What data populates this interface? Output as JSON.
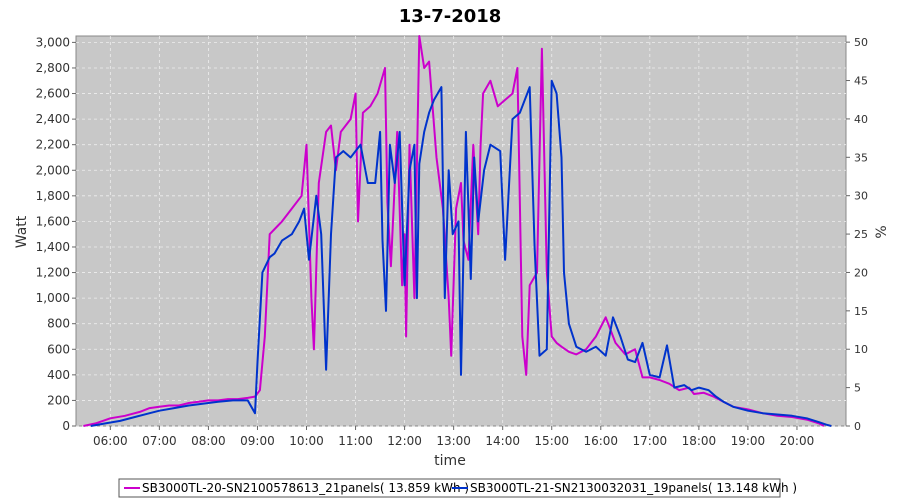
{
  "chart_data": {
    "type": "line",
    "title": "13-7-2018",
    "xlabel": "time",
    "ylabel": "Watt",
    "y2label": "%",
    "xlim": [
      5.3,
      21.0
    ],
    "ylim": [
      0,
      3050
    ],
    "y2lim": [
      0,
      50.8
    ],
    "x_ticks": [
      6,
      7,
      8,
      9,
      10,
      11,
      12,
      13,
      14,
      15,
      16,
      17,
      18,
      19,
      20
    ],
    "x_tick_labels": [
      "06:00",
      "07:00",
      "08:00",
      "09:00",
      "10:00",
      "11:00",
      "12:00",
      "13:00",
      "14:00",
      "15:00",
      "16:00",
      "17:00",
      "18:00",
      "19:00",
      "20:00"
    ],
    "y_ticks": [
      0,
      200,
      400,
      600,
      800,
      1000,
      1200,
      1400,
      1600,
      1800,
      2000,
      2200,
      2400,
      2600,
      2800,
      3000
    ],
    "y_tick_labels": [
      "0",
      "200",
      "400",
      "600",
      "800",
      "1,000",
      "1,200",
      "1,400",
      "1,600",
      "1,800",
      "2,000",
      "2,200",
      "2,400",
      "2,600",
      "2,800",
      "3,000"
    ],
    "y2_ticks": [
      0,
      5,
      10,
      15,
      20,
      25,
      30,
      35,
      40,
      45,
      50
    ],
    "y2_tick_labels": [
      "0",
      "5",
      "10",
      "15",
      "20",
      "25",
      "30",
      "35",
      "40",
      "45",
      "50"
    ],
    "grid": true,
    "legend_position": "bottom",
    "colors": {
      "plot_bg": "#c8c8c8",
      "grid": "#eeeeee",
      "s1": "#cc00cc",
      "s2": "#0033cc"
    },
    "series": [
      {
        "name": "SB3000TL-20-SN2100578613_21panels( 13.859 kWh )",
        "color": "#cc00cc",
        "points": [
          [
            5.45,
            0
          ],
          [
            5.7,
            20
          ],
          [
            6.0,
            60
          ],
          [
            6.3,
            80
          ],
          [
            6.6,
            110
          ],
          [
            6.8,
            140
          ],
          [
            7.0,
            150
          ],
          [
            7.2,
            160
          ],
          [
            7.4,
            160
          ],
          [
            7.6,
            180
          ],
          [
            7.8,
            190
          ],
          [
            8.0,
            200
          ],
          [
            8.2,
            200
          ],
          [
            8.4,
            210
          ],
          [
            8.6,
            210
          ],
          [
            8.8,
            220
          ],
          [
            8.95,
            230
          ],
          [
            9.05,
            280
          ],
          [
            9.15,
            700
          ],
          [
            9.25,
            1500
          ],
          [
            9.4,
            1560
          ],
          [
            9.5,
            1600
          ],
          [
            9.7,
            1700
          ],
          [
            9.9,
            1800
          ],
          [
            10.0,
            2200
          ],
          [
            10.1,
            1000
          ],
          [
            10.15,
            600
          ],
          [
            10.25,
            1900
          ],
          [
            10.4,
            2300
          ],
          [
            10.5,
            2350
          ],
          [
            10.6,
            2000
          ],
          [
            10.7,
            2300
          ],
          [
            10.8,
            2350
          ],
          [
            10.9,
            2400
          ],
          [
            11.0,
            2600
          ],
          [
            11.05,
            1600
          ],
          [
            11.15,
            2450
          ],
          [
            11.3,
            2500
          ],
          [
            11.45,
            2600
          ],
          [
            11.6,
            2800
          ],
          [
            11.65,
            1750
          ],
          [
            11.72,
            1250
          ],
          [
            11.85,
            2300
          ],
          [
            11.95,
            1100
          ],
          [
            12.0,
            1500
          ],
          [
            12.03,
            700
          ],
          [
            12.1,
            2200
          ],
          [
            12.2,
            1000
          ],
          [
            12.3,
            3050
          ],
          [
            12.4,
            2800
          ],
          [
            12.5,
            2850
          ],
          [
            12.65,
            2100
          ],
          [
            12.78,
            1700
          ],
          [
            12.9,
            1000
          ],
          [
            12.95,
            550
          ],
          [
            13.05,
            1700
          ],
          [
            13.15,
            1900
          ],
          [
            13.2,
            1450
          ],
          [
            13.3,
            1300
          ],
          [
            13.4,
            2200
          ],
          [
            13.5,
            1500
          ],
          [
            13.55,
            2200
          ],
          [
            13.6,
            2600
          ],
          [
            13.75,
            2700
          ],
          [
            13.9,
            2500
          ],
          [
            14.05,
            2550
          ],
          [
            14.2,
            2600
          ],
          [
            14.3,
            2800
          ],
          [
            14.4,
            700
          ],
          [
            14.48,
            400
          ],
          [
            14.55,
            1100
          ],
          [
            14.7,
            1200
          ],
          [
            14.8,
            2950
          ],
          [
            14.9,
            1200
          ],
          [
            15.0,
            700
          ],
          [
            15.1,
            650
          ],
          [
            15.2,
            620
          ],
          [
            15.35,
            580
          ],
          [
            15.5,
            560
          ],
          [
            15.7,
            600
          ],
          [
            15.9,
            700
          ],
          [
            16.1,
            850
          ],
          [
            16.3,
            650
          ],
          [
            16.5,
            560
          ],
          [
            16.7,
            600
          ],
          [
            16.85,
            380
          ],
          [
            17.0,
            380
          ],
          [
            17.2,
            360
          ],
          [
            17.4,
            330
          ],
          [
            17.6,
            280
          ],
          [
            17.8,
            300
          ],
          [
            17.9,
            250
          ],
          [
            18.1,
            260
          ],
          [
            18.3,
            230
          ],
          [
            18.5,
            190
          ],
          [
            18.7,
            150
          ],
          [
            19.0,
            130
          ],
          [
            19.3,
            100
          ],
          [
            19.6,
            80
          ],
          [
            19.9,
            70
          ],
          [
            20.2,
            50
          ],
          [
            20.45,
            20
          ],
          [
            20.55,
            0
          ]
        ]
      },
      {
        "name": "SB3000TL-21-SN2130032031_19panels( 13.148 kWh )",
        "color": "#0033cc",
        "points": [
          [
            5.6,
            0
          ],
          [
            5.9,
            20
          ],
          [
            6.2,
            40
          ],
          [
            6.5,
            70
          ],
          [
            6.8,
            100
          ],
          [
            7.0,
            120
          ],
          [
            7.3,
            140
          ],
          [
            7.6,
            160
          ],
          [
            7.9,
            175
          ],
          [
            8.2,
            190
          ],
          [
            8.5,
            200
          ],
          [
            8.8,
            200
          ],
          [
            8.95,
            100
          ],
          [
            9.0,
            500
          ],
          [
            9.1,
            1200
          ],
          [
            9.25,
            1320
          ],
          [
            9.35,
            1350
          ],
          [
            9.5,
            1450
          ],
          [
            9.7,
            1500
          ],
          [
            9.85,
            1600
          ],
          [
            9.95,
            1700
          ],
          [
            10.05,
            1300
          ],
          [
            10.2,
            1800
          ],
          [
            10.3,
            1500
          ],
          [
            10.4,
            440
          ],
          [
            10.5,
            1500
          ],
          [
            10.6,
            2100
          ],
          [
            10.75,
            2150
          ],
          [
            10.9,
            2100
          ],
          [
            11.1,
            2200
          ],
          [
            11.25,
            1900
          ],
          [
            11.4,
            1900
          ],
          [
            11.5,
            2300
          ],
          [
            11.55,
            1450
          ],
          [
            11.62,
            900
          ],
          [
            11.7,
            2200
          ],
          [
            11.8,
            1900
          ],
          [
            11.9,
            2300
          ],
          [
            12.0,
            1100
          ],
          [
            12.1,
            2000
          ],
          [
            12.2,
            2200
          ],
          [
            12.25,
            1000
          ],
          [
            12.3,
            2050
          ],
          [
            12.4,
            2300
          ],
          [
            12.5,
            2450
          ],
          [
            12.6,
            2550
          ],
          [
            12.75,
            2650
          ],
          [
            12.82,
            1000
          ],
          [
            12.9,
            2000
          ],
          [
            12.98,
            1500
          ],
          [
            13.1,
            1600
          ],
          [
            13.15,
            400
          ],
          [
            13.25,
            2300
          ],
          [
            13.35,
            1150
          ],
          [
            13.42,
            2100
          ],
          [
            13.5,
            1600
          ],
          [
            13.62,
            2000
          ],
          [
            13.75,
            2200
          ],
          [
            13.95,
            2150
          ],
          [
            14.05,
            1300
          ],
          [
            14.2,
            2400
          ],
          [
            14.35,
            2450
          ],
          [
            14.45,
            2550
          ],
          [
            14.55,
            2650
          ],
          [
            14.65,
            1400
          ],
          [
            14.75,
            550
          ],
          [
            14.9,
            600
          ],
          [
            15.0,
            2700
          ],
          [
            15.1,
            2600
          ],
          [
            15.2,
            2100
          ],
          [
            15.25,
            1200
          ],
          [
            15.35,
            800
          ],
          [
            15.5,
            620
          ],
          [
            15.7,
            580
          ],
          [
            15.9,
            620
          ],
          [
            16.1,
            550
          ],
          [
            16.25,
            850
          ],
          [
            16.4,
            700
          ],
          [
            16.55,
            520
          ],
          [
            16.7,
            500
          ],
          [
            16.85,
            650
          ],
          [
            17.0,
            400
          ],
          [
            17.2,
            380
          ],
          [
            17.35,
            630
          ],
          [
            17.5,
            300
          ],
          [
            17.7,
            320
          ],
          [
            17.85,
            280
          ],
          [
            18.0,
            300
          ],
          [
            18.2,
            280
          ],
          [
            18.35,
            230
          ],
          [
            18.5,
            190
          ],
          [
            18.7,
            150
          ],
          [
            19.0,
            120
          ],
          [
            19.3,
            100
          ],
          [
            19.6,
            90
          ],
          [
            19.9,
            80
          ],
          [
            20.2,
            60
          ],
          [
            20.45,
            30
          ],
          [
            20.6,
            10
          ],
          [
            20.7,
            0
          ]
        ]
      }
    ]
  }
}
